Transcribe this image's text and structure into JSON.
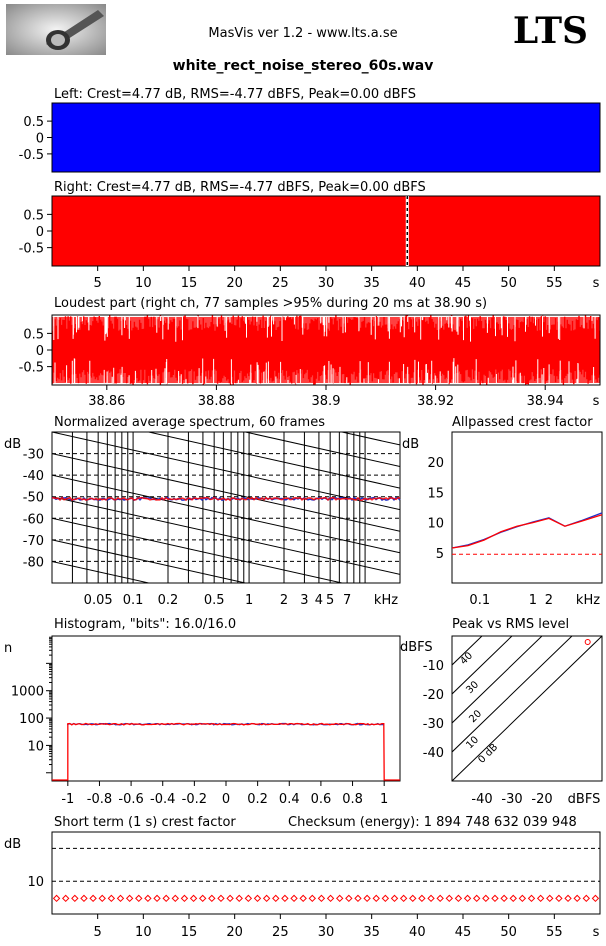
{
  "header": {
    "app_title": "MasVis ver 1.2 - www.lts.a.se",
    "brand": "LTS",
    "filename": "white_rect_noise_stereo_60s.wav",
    "logo_icon": "masvis-logo-icon"
  },
  "colors": {
    "left": "#0000ff",
    "right": "#ff0000",
    "blue_trace": "#1f2fc8"
  },
  "chart_data": [
    {
      "id": "left",
      "type": "area",
      "title": "Left: Crest=4.77 dB, RMS=-4.77 dBFS, Peak=0.00 dBFS",
      "y_ticks": [
        "0.5",
        "0",
        "-0.5"
      ],
      "ylim": [
        -1,
        1
      ],
      "xlim": [
        0,
        60
      ],
      "fill": "full-scale noise"
    },
    {
      "id": "right",
      "type": "area",
      "title": "Right: Crest=4.77 dB, RMS=-4.77 dBFS, Peak=0.00 dBFS",
      "y_ticks": [
        "0.5",
        "0",
        "-0.5"
      ],
      "x_ticks": [
        "5",
        "10",
        "15",
        "20",
        "25",
        "30",
        "35",
        "40",
        "45",
        "50",
        "55",
        "s"
      ],
      "ylim": [
        -1,
        1
      ],
      "xlim": [
        0,
        60
      ],
      "loudest_marker_s": 38.9
    },
    {
      "id": "loudest",
      "type": "line",
      "title": "Loudest part (right ch, 77 samples >95% during 20 ms at 38.90 s)",
      "y_ticks": [
        "0.5",
        "0",
        "-0.5"
      ],
      "x_ticks": [
        "38.86",
        "38.88",
        "38.9",
        "38.92",
        "38.94",
        "s"
      ],
      "xlim": [
        38.85,
        38.95
      ],
      "ylim": [
        -1,
        1
      ]
    },
    {
      "id": "spectrum",
      "type": "line",
      "title": "Normalized average spectrum, 60 frames",
      "ylabel": "dB",
      "y_ticks": [
        "-30",
        "-40",
        "-50",
        "-60",
        "-70",
        "-80"
      ],
      "x_ticks": [
        "0.05",
        "0.1",
        "0.2",
        "0.5",
        "1",
        "2",
        "3",
        "4",
        "5",
        "7",
        "kHz"
      ],
      "xlim": [
        0.02,
        20
      ],
      "ylim": [
        -90,
        -20
      ],
      "left_db": -51,
      "right_db": -51
    },
    {
      "id": "allpass",
      "type": "line",
      "title": "Allpassed crest factor",
      "ylabel": "dB",
      "y_ticks": [
        "20",
        "15",
        "10",
        "5"
      ],
      "x_ticks": [
        "0.1",
        "1",
        "2",
        "kHz"
      ],
      "xlim": [
        0.03,
        20
      ],
      "ylim": [
        0,
        25
      ],
      "reference_db": 4.77,
      "x": [
        0.03,
        0.06,
        0.12,
        0.25,
        0.5,
        1.0,
        2.0,
        4.0,
        8.0,
        20.0
      ],
      "left": [
        5.8,
        6.3,
        7.2,
        8.4,
        9.3,
        10.1,
        10.8,
        9.4,
        10.3,
        11.6
      ],
      "right": [
        5.8,
        6.2,
        7.1,
        8.5,
        9.4,
        10.0,
        10.7,
        9.4,
        10.2,
        11.3
      ]
    },
    {
      "id": "histogram",
      "type": "line",
      "title": "Histogram, \"bits\": 16.0/16.0",
      "ylabel": "n",
      "y_ticks": [
        "1000",
        "100",
        "10"
      ],
      "x_ticks": [
        "-1",
        "-0.8",
        "-0.6",
        "-0.4",
        "-0.2",
        "0",
        "0.2",
        "0.4",
        "0.6",
        "0.8",
        "1"
      ],
      "xlim": [
        -1.1,
        1.1
      ],
      "ylim": [
        0.5,
        100000
      ],
      "level_n": 60
    },
    {
      "id": "peak_rms",
      "type": "scatter",
      "title": "Peak vs RMS level",
      "ylabel": "dBFS",
      "y_ticks": [
        "-10",
        "-20",
        "-30",
        "-40"
      ],
      "x_ticks": [
        "-40",
        "-30",
        "-20",
        "dBFS"
      ],
      "diag_labels": [
        "40",
        "30",
        "20",
        "10",
        "0 dB"
      ],
      "xlim": [
        -50,
        0
      ],
      "ylim": [
        -50,
        0
      ],
      "points": [
        {
          "rms": -4.77,
          "peak": 0.0
        }
      ]
    },
    {
      "id": "short_crest",
      "type": "scatter",
      "title": "Short term (1 s) crest factor",
      "ylabel": "dB",
      "y_ticks": [
        "10"
      ],
      "x_ticks": [
        "5",
        "10",
        "15",
        "20",
        "25",
        "30",
        "35",
        "40",
        "45",
        "50",
        "55",
        "s"
      ],
      "xlim": [
        0,
        60
      ],
      "ylim": [
        0,
        25
      ],
      "value_db": 4.77,
      "points_count": 60
    }
  ],
  "checksum": "Checksum (energy):  1 894 748 632 039 948"
}
